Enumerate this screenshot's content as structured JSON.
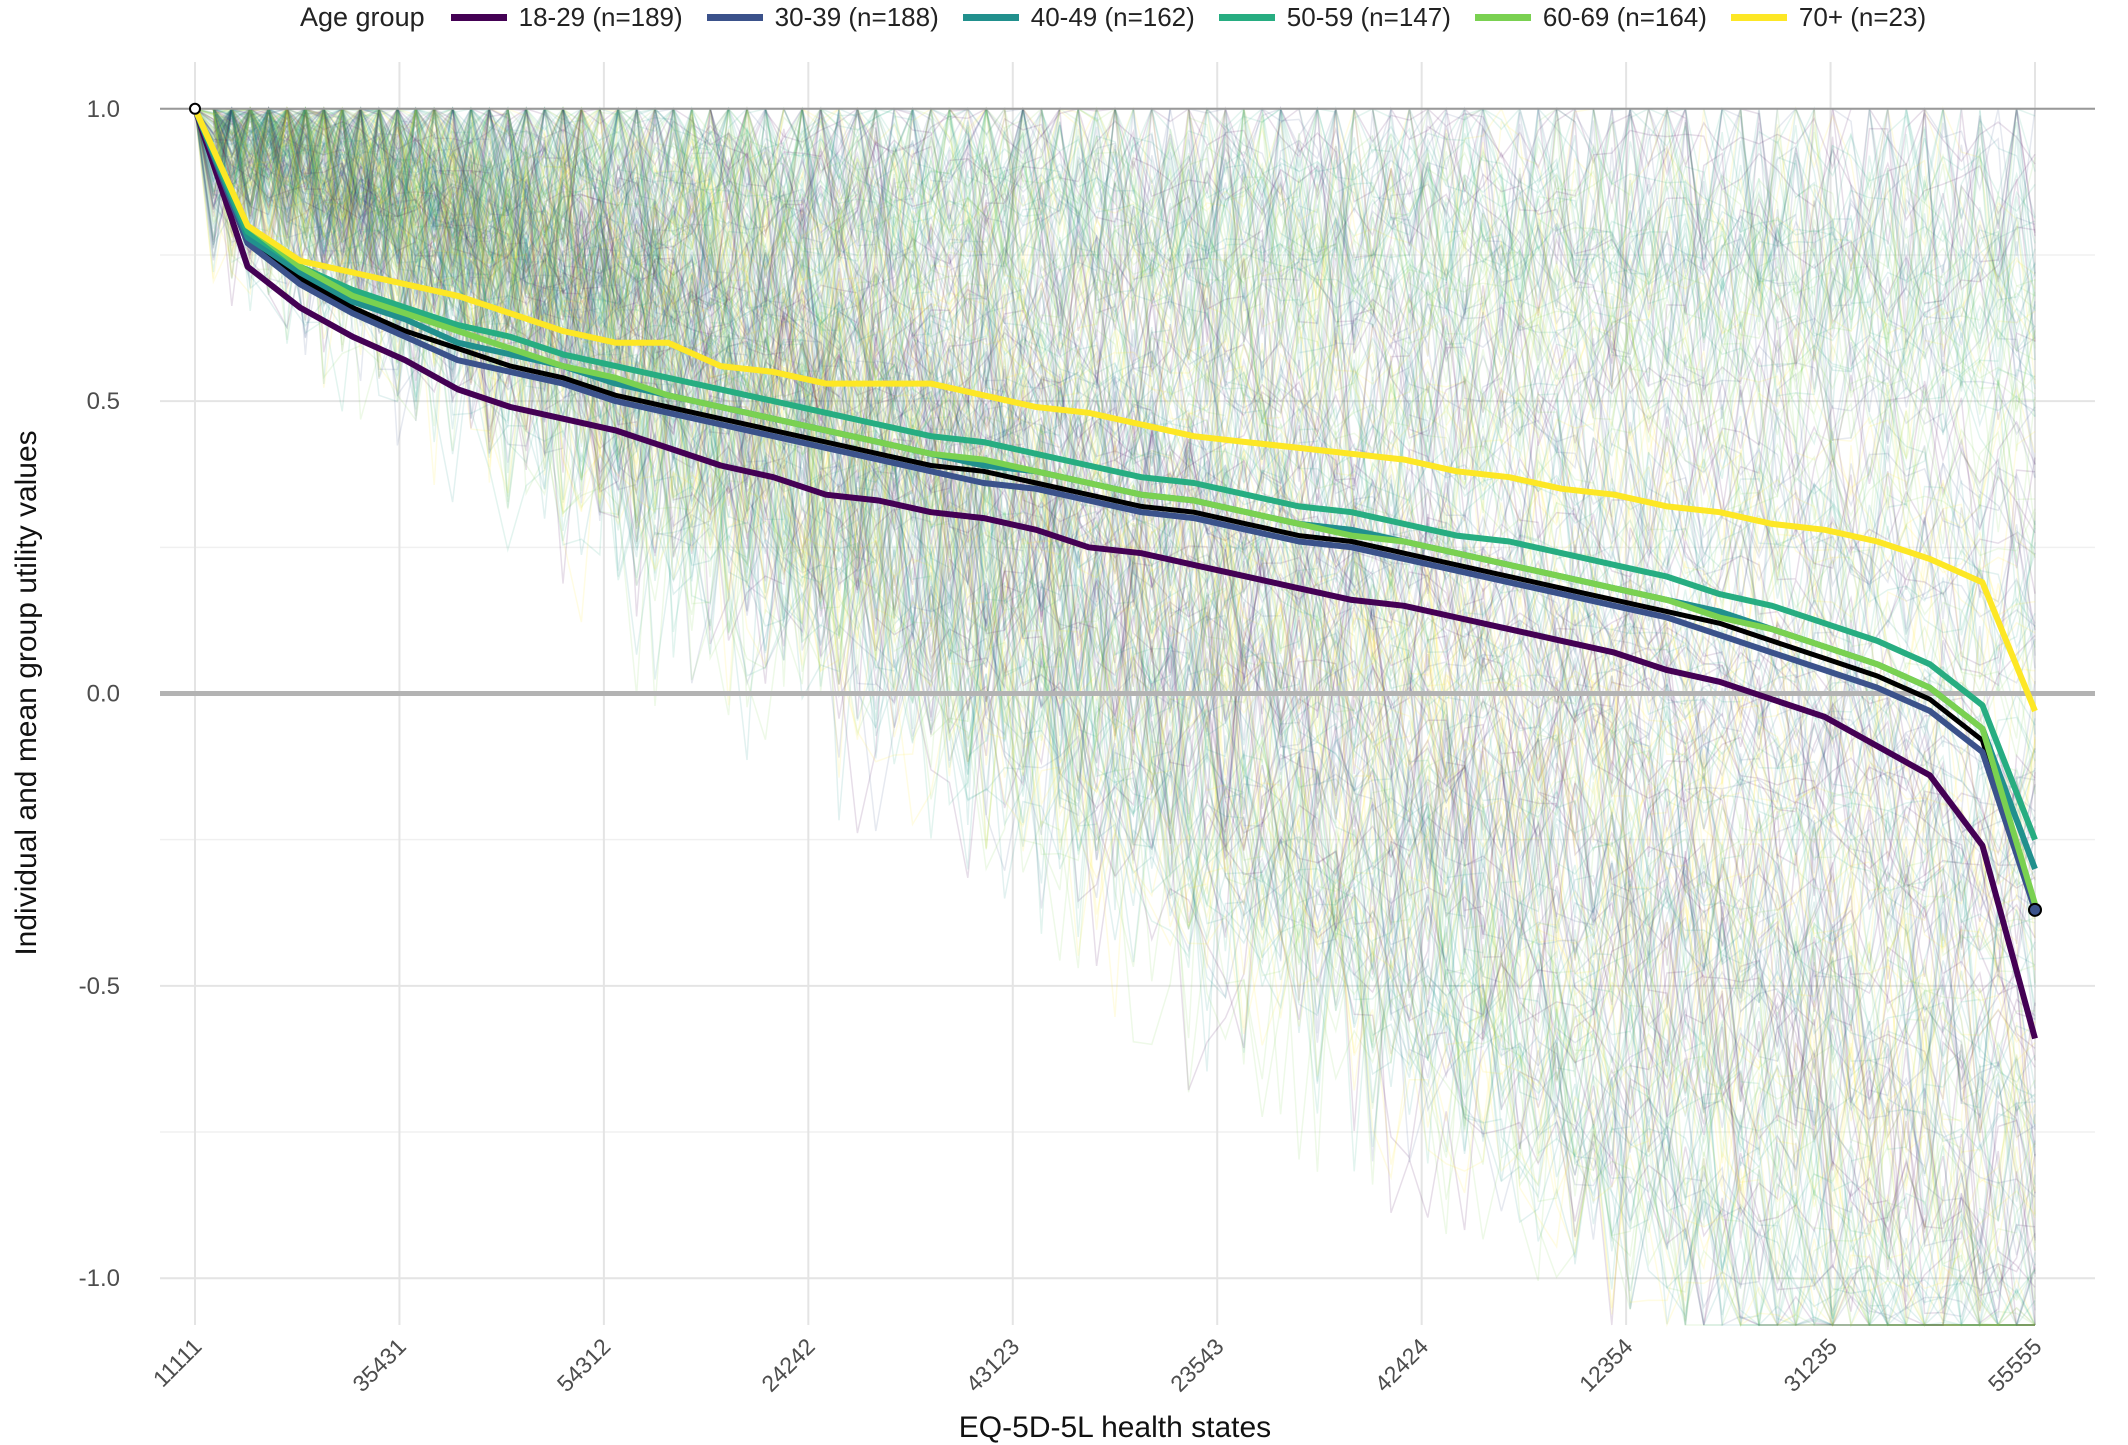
{
  "chart_data": {
    "type": "line",
    "xlabel": "EQ-5D-5L health states",
    "ylabel": "Individual and mean group utility values",
    "legend_title": "Age group",
    "legend_position": "top",
    "grid": true,
    "ylim": [
      -1.08,
      1.08
    ],
    "y_ticks": [
      1.0,
      0.5,
      0.0,
      -0.5,
      -1.0
    ],
    "y_tick_labels": [
      "1.0",
      "0.5",
      "0.0",
      "-0.5",
      "-1.0"
    ],
    "x_tick_labels": [
      "11111",
      "35431",
      "54312",
      "24242",
      "43123",
      "23543",
      "42424",
      "12354",
      "31235",
      "55555"
    ],
    "n_states": 101,
    "series": [
      {
        "name": "18-29 (n=189)",
        "color": "#440154",
        "values": [
          1.0,
          0.73,
          0.66,
          0.61,
          0.57,
          0.52,
          0.49,
          0.47,
          0.45,
          0.42,
          0.39,
          0.37,
          0.34,
          0.33,
          0.31,
          0.3,
          0.28,
          0.25,
          0.24,
          0.22,
          0.2,
          0.18,
          0.16,
          0.15,
          0.13,
          0.11,
          0.09,
          0.07,
          0.04,
          0.02,
          -0.01,
          -0.04,
          -0.09,
          -0.14,
          -0.26,
          -0.59
        ]
      },
      {
        "name": "30-39 (n=188)",
        "color": "#3b528b",
        "values": [
          1.0,
          0.77,
          0.7,
          0.65,
          0.61,
          0.57,
          0.55,
          0.53,
          0.5,
          0.48,
          0.46,
          0.44,
          0.42,
          0.4,
          0.38,
          0.36,
          0.35,
          0.33,
          0.31,
          0.3,
          0.28,
          0.26,
          0.25,
          0.23,
          0.21,
          0.19,
          0.17,
          0.15,
          0.13,
          0.1,
          0.07,
          0.04,
          0.01,
          -0.03,
          -0.1,
          -0.37
        ]
      },
      {
        "name": "40-49 (n=162)",
        "color": "#21908d",
        "values": [
          1.0,
          0.78,
          0.72,
          0.67,
          0.64,
          0.6,
          0.58,
          0.56,
          0.53,
          0.51,
          0.49,
          0.47,
          0.45,
          0.43,
          0.41,
          0.39,
          0.38,
          0.36,
          0.34,
          0.33,
          0.31,
          0.29,
          0.28,
          0.26,
          0.24,
          0.22,
          0.2,
          0.18,
          0.16,
          0.14,
          0.11,
          0.08,
          0.05,
          0.01,
          -0.06,
          -0.3
        ]
      },
      {
        "name": "50-59 (n=147)",
        "color": "#27ad81",
        "values": [
          1.0,
          0.79,
          0.73,
          0.69,
          0.66,
          0.63,
          0.61,
          0.58,
          0.56,
          0.54,
          0.52,
          0.5,
          0.48,
          0.46,
          0.44,
          0.43,
          0.41,
          0.39,
          0.37,
          0.36,
          0.34,
          0.32,
          0.31,
          0.29,
          0.27,
          0.26,
          0.24,
          0.22,
          0.2,
          0.17,
          0.15,
          0.12,
          0.09,
          0.05,
          -0.02,
          -0.25
        ]
      },
      {
        "name": "60-69 (n=164)",
        "color": "#7ad151",
        "values": [
          1.0,
          0.8,
          0.73,
          0.68,
          0.65,
          0.62,
          0.59,
          0.56,
          0.54,
          0.51,
          0.49,
          0.47,
          0.45,
          0.43,
          0.41,
          0.4,
          0.38,
          0.36,
          0.34,
          0.33,
          0.31,
          0.29,
          0.27,
          0.26,
          0.24,
          0.22,
          0.2,
          0.18,
          0.16,
          0.13,
          0.11,
          0.08,
          0.05,
          0.01,
          -0.06,
          -0.36
        ]
      },
      {
        "name": "70+ (n=23)",
        "color": "#fde725",
        "values": [
          1.0,
          0.8,
          0.74,
          0.72,
          0.7,
          0.68,
          0.65,
          0.62,
          0.6,
          0.6,
          0.56,
          0.55,
          0.53,
          0.53,
          0.53,
          0.51,
          0.49,
          0.48,
          0.46,
          0.44,
          0.43,
          0.42,
          0.41,
          0.4,
          0.38,
          0.37,
          0.35,
          0.34,
          0.32,
          0.31,
          0.29,
          0.28,
          0.26,
          0.23,
          0.19,
          -0.03
        ]
      }
    ],
    "overall_mean": {
      "color": "#000000",
      "values": [
        1.0,
        0.77,
        0.71,
        0.66,
        0.62,
        0.59,
        0.56,
        0.54,
        0.51,
        0.49,
        0.47,
        0.45,
        0.43,
        0.41,
        0.39,
        0.38,
        0.36,
        0.34,
        0.32,
        0.31,
        0.29,
        0.27,
        0.26,
        0.24,
        0.22,
        0.2,
        0.18,
        0.16,
        0.14,
        0.12,
        0.09,
        0.06,
        0.03,
        -0.01,
        -0.08,
        -0.37
      ]
    }
  }
}
